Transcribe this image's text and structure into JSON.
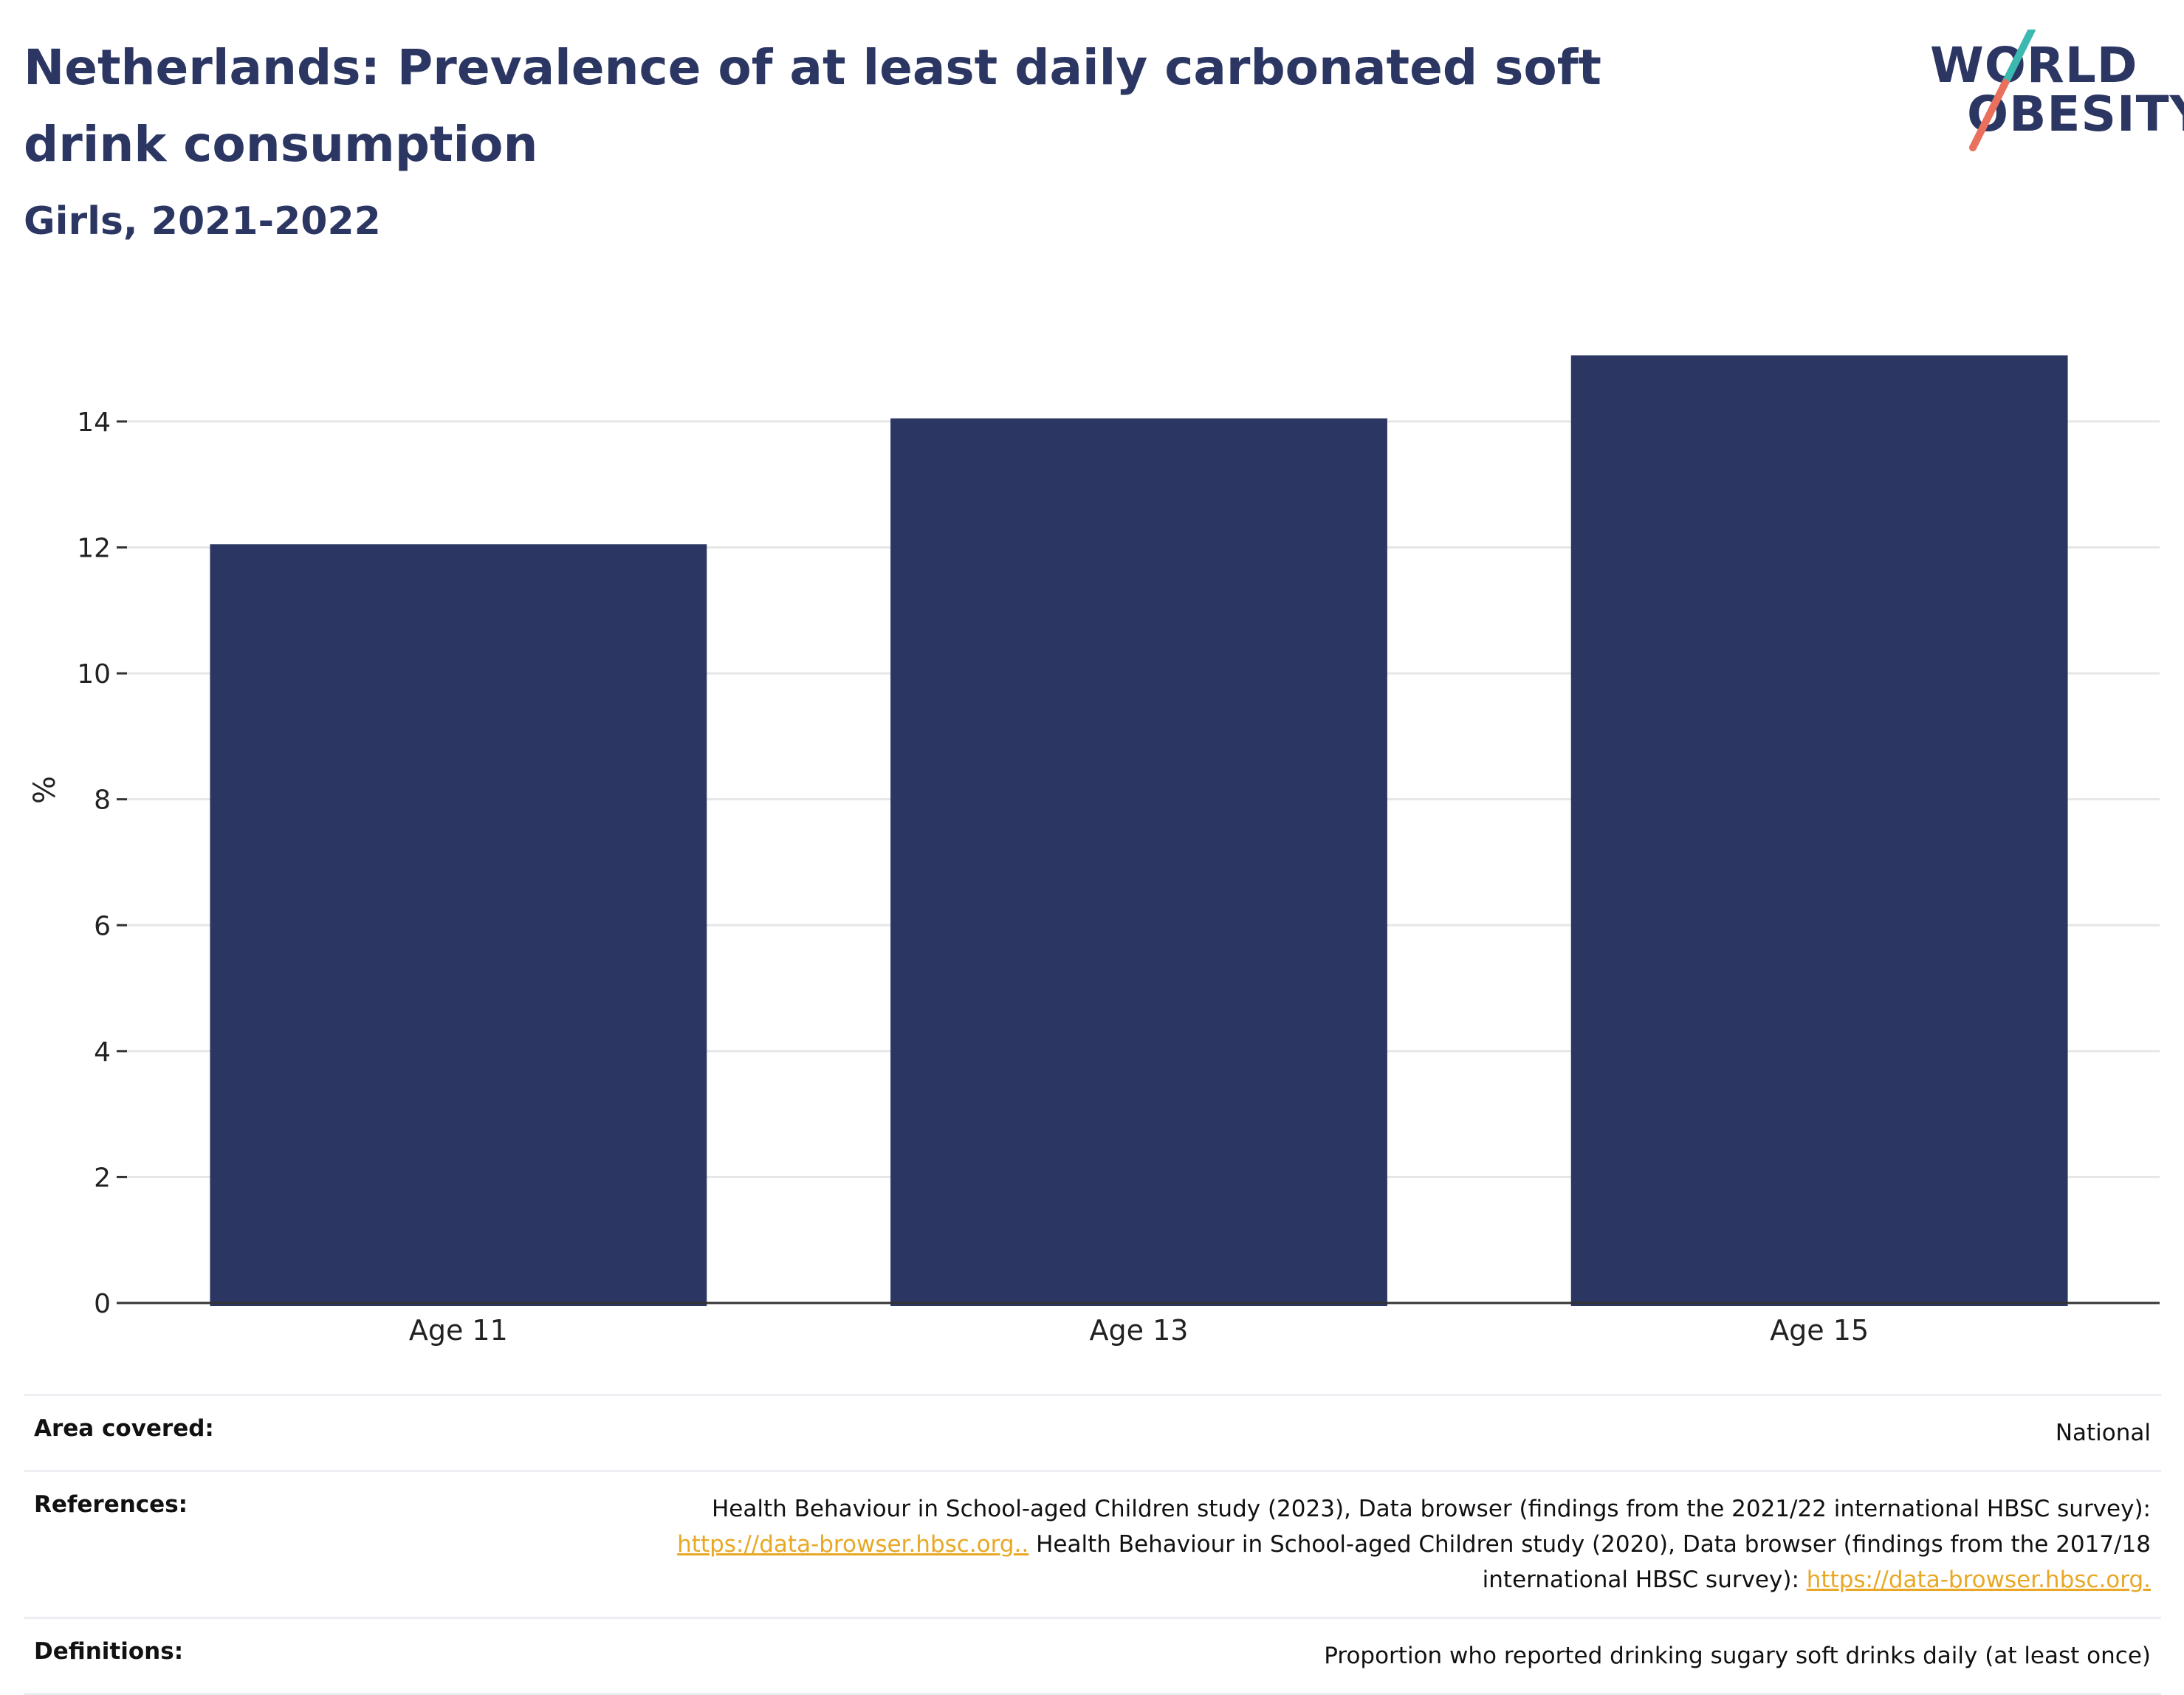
{
  "header": {
    "title": "Netherlands: Prevalence of at least daily carbonated soft drink consumption",
    "subtitle": "Girls, 2021-2022"
  },
  "logo": {
    "line1": "WORLD",
    "line2": "OBESITY",
    "colors": {
      "navy": "#2b3663",
      "teal": "#3bb8b0",
      "coral": "#e8705c"
    }
  },
  "chart_data": {
    "type": "bar",
    "categories": [
      "Age 11",
      "Age 13",
      "Age 15"
    ],
    "values": [
      12.05,
      14.05,
      15.05
    ],
    "title": "Netherlands: Prevalence of at least daily carbonated soft drink consumption",
    "subtitle": "Girls, 2021-2022",
    "xlabel": "",
    "ylabel": "%",
    "ylim": [
      0,
      15.5
    ],
    "yticks": [
      0,
      2,
      4,
      6,
      8,
      10,
      12,
      14
    ],
    "grid": true,
    "bar_color": "#2b3663"
  },
  "meta": {
    "area_label": "Area covered:",
    "area_value": "National",
    "references_label": "References:",
    "ref_text_1": "Health Behaviour in School-aged Children study (2023), Data browser (findings from the 2021/22 international HBSC survey):",
    "ref_link_1": "https://data-browser.hbsc.org..",
    "ref_text_2": "Health Behaviour in School-aged Children study (2020), Data browser (findings from the 2017/18 international HBSC survey):",
    "ref_link_2": "https://data-browser.hbsc.org.",
    "definitions_label": "Definitions:",
    "definitions_value": "Proportion who reported drinking sugary soft drinks daily (at least once)"
  }
}
